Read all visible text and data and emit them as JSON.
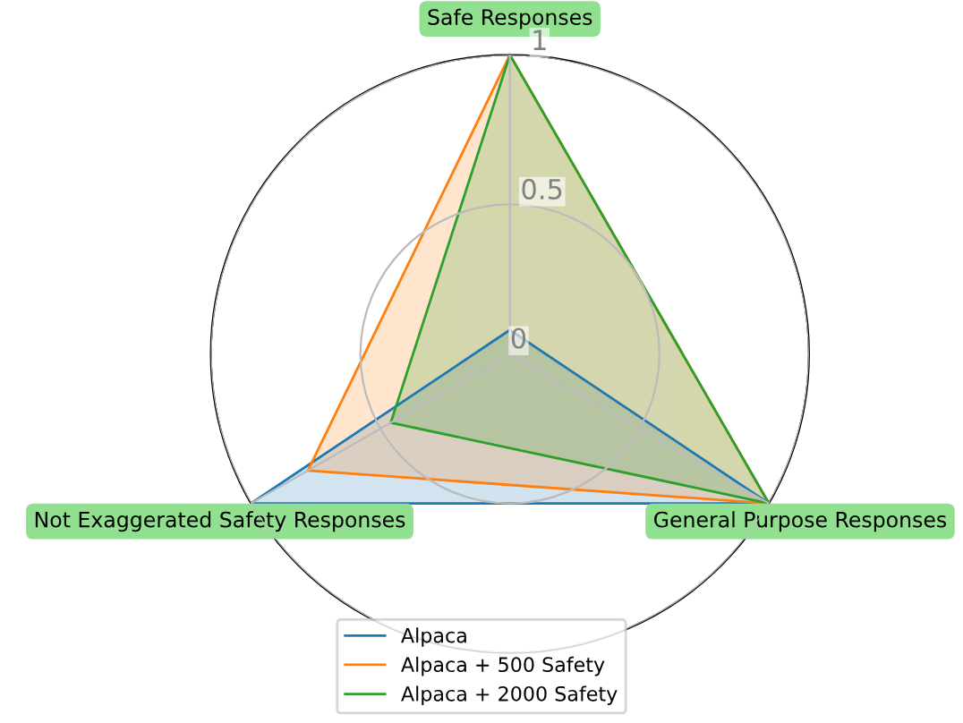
{
  "chart_data": {
    "type": "radar",
    "categories": [
      "Safe Responses",
      "General Purpose Responses",
      "Not Exaggerated Safety Responses"
    ],
    "ylim": [
      0,
      1
    ],
    "yticks": [
      0,
      0.5,
      1
    ],
    "grid": true,
    "legend": "bottom",
    "series": [
      {
        "name": "Alpaca",
        "color": "#1f77b4",
        "values": [
          0.08,
          1,
          1
        ]
      },
      {
        "name": "Alpaca + 500 Safety",
        "color": "#ff7f0e",
        "values": [
          1,
          1,
          0.78
        ]
      },
      {
        "name": "Alpaca + 2000 Safety",
        "color": "#2ca02c",
        "values": [
          1,
          1,
          0.46
        ]
      }
    ]
  }
}
